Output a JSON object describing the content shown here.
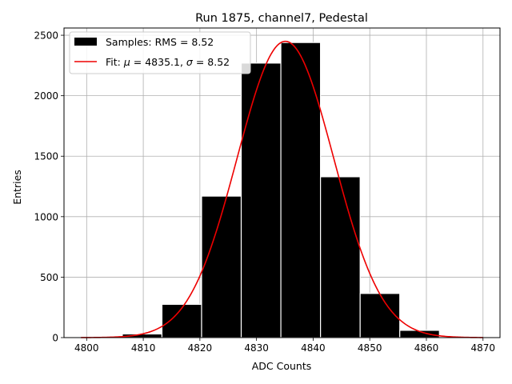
{
  "chart_data": {
    "type": "bar",
    "title": "Run 1875, channel7, Pedestal",
    "xlabel": "ADC Counts",
    "ylabel": "Entries",
    "xlim": [
      4796,
      4873
    ],
    "ylim": [
      0,
      2560
    ],
    "xticks": [
      4800,
      4810,
      4820,
      4830,
      4840,
      4850,
      4860,
      4870
    ],
    "yticks": [
      0,
      500,
      1000,
      1500,
      2000,
      2500
    ],
    "grid": true,
    "legend_position": "top-left",
    "bar_color": "#000000",
    "fit_color": "#ee0000",
    "histogram": {
      "name": "Samples: RMS = 8.52",
      "bins": [
        {
          "x0": 4806.3,
          "x1": 4813.3,
          "count": 30
        },
        {
          "x0": 4813.3,
          "x1": 4820.3,
          "count": 275
        },
        {
          "x0": 4820.3,
          "x1": 4827.3,
          "count": 1170
        },
        {
          "x0": 4827.3,
          "x1": 4834.3,
          "count": 2270
        },
        {
          "x0": 4834.3,
          "x1": 4841.3,
          "count": 2440
        },
        {
          "x0": 4841.3,
          "x1": 4848.3,
          "count": 1330
        },
        {
          "x0": 4848.3,
          "x1": 4855.3,
          "count": 365
        },
        {
          "x0": 4855.3,
          "x1": 4862.3,
          "count": 60
        }
      ]
    },
    "fit": {
      "name_prefix": "Fit: ",
      "name_mid": " = 4835.1, ",
      "name_suffix": " = 8.52",
      "mu_symbol": "μ",
      "sigma_symbol": "σ",
      "mu": 4835.1,
      "sigma": 8.52,
      "amplitude": 2450,
      "x_range": [
        4799,
        4870
      ]
    }
  }
}
